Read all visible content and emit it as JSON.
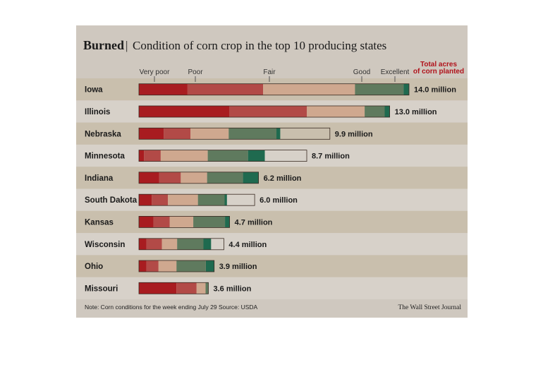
{
  "chart_data": {
    "type": "bar",
    "title": "Burned",
    "subtitle": "Condition of corn crop in the top 10 producing states",
    "scale_labels": [
      "Very poor",
      "Poor",
      "Fair",
      "Good",
      "Excellent"
    ],
    "legend_line1": "Total acres",
    "legend_line2": "of corn planted",
    "categories": [
      "Iowa",
      "Illinois",
      "Nebraska",
      "Minnesota",
      "Indiana",
      "South Dakota",
      "Kansas",
      "Wisconsin",
      "Ohio",
      "Missouri"
    ],
    "acres_labels": [
      "14.0 million",
      "13.0 million",
      "9.9 million",
      "8.7 million",
      "6.2 million",
      "6.0 million",
      "4.7 million",
      "4.4 million",
      "3.9 million",
      "3.6 million"
    ],
    "acres_millions": [
      14.0,
      13.0,
      9.9,
      8.7,
      6.2,
      6.0,
      4.7,
      4.4,
      3.9,
      3.6
    ],
    "series": [
      {
        "name": "Very poor",
        "values": [
          18,
          36,
          13,
          3,
          17,
          11,
          16,
          9,
          10,
          54
        ]
      },
      {
        "name": "Poor",
        "values": [
          28,
          31,
          14,
          10,
          18,
          14,
          18,
          18,
          16,
          29
        ]
      },
      {
        "name": "Fair",
        "values": [
          34,
          23,
          20,
          28,
          22,
          26,
          26,
          18,
          24,
          13
        ]
      },
      {
        "name": "Good",
        "values": [
          18,
          8,
          25,
          24,
          30,
          23,
          35,
          31,
          39,
          4
        ]
      },
      {
        "name": "Excellent",
        "values": [
          2,
          2,
          2,
          10,
          13,
          2,
          5,
          9,
          11,
          0
        ]
      }
    ],
    "colors": [
      "#a81c20",
      "#b24a47",
      "#cfa88f",
      "#5f7a5e",
      "#1f6a4f"
    ],
    "note": "Note: Corn conditions for the week ending July 29   Source: USDA",
    "source": "The Wall Street Journal",
    "legend_placement": "top-right",
    "grid": false
  }
}
